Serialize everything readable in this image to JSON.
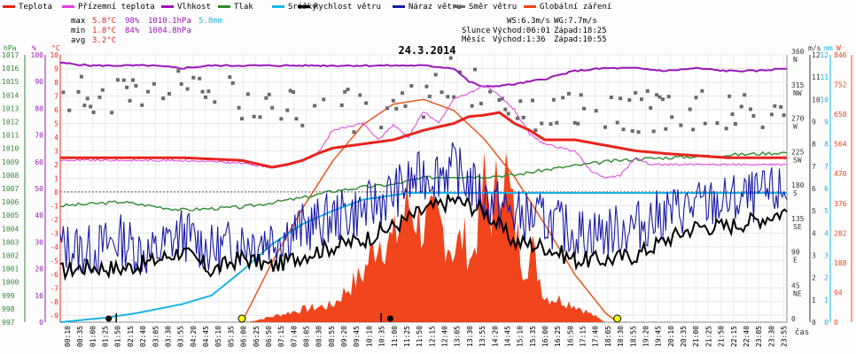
{
  "chart_data": {
    "type": "line",
    "title": "24.3.2014",
    "legend": [
      {
        "label": "Teplota",
        "color": "#e8231b"
      },
      {
        "label": "Přízemní teplota",
        "color": "#e040e0"
      },
      {
        "label": "Vlhkost",
        "color": "#9a16b8"
      },
      {
        "label": "Tlak",
        "color": "#2e8b2e"
      },
      {
        "label": "Srážky",
        "color": "#18b4e6"
      },
      {
        "label": "Rychlost větru",
        "color": "#000000"
      },
      {
        "label": "Náraz větru",
        "color": "#1a1aa6"
      },
      {
        "label": "Směr větru",
        "color": "#6a6a6a"
      },
      {
        "label": "Globální záření",
        "color": "#f0441c"
      }
    ],
    "stats": {
      "max_label": "max",
      "max_temp": "5.8°C",
      "max_hum": "98%",
      "max_press": "1010.1hPa",
      "max_rain": "5.8mm",
      "min_label": "min",
      "min_temp": "1.8°C",
      "min_hum": "84%",
      "min_press": "1004.8hPa",
      "avg_label": "avg",
      "avg_temp": "3.2°C"
    },
    "wind_info": {
      "ws": "WS:6.3m/s",
      "wg": "WG:7.7m/s"
    },
    "sun_info": {
      "label": "Slunce",
      "rise": "Východ:06:01",
      "set": "Západ:18:25"
    },
    "moon_info": {
      "label": "Měsíc",
      "rise": "Východ:1:36",
      "set": "Západ:10:55"
    },
    "axes": {
      "hpa_unit": "hPa",
      "hpa_ticks": [
        "1017",
        "1016",
        "1015",
        "1014",
        "1013",
        "1012",
        "1011",
        "1010",
        "1009",
        "1008",
        "1007",
        "1006",
        "1005",
        "1004",
        "1003",
        "1002",
        "1001",
        "1000",
        "999",
        "998",
        "997"
      ],
      "pct_unit": "%",
      "pct_ticks": [
        "100",
        "90",
        "80",
        "70",
        "60",
        "50",
        "40",
        "30",
        "20",
        "10",
        "0"
      ],
      "temp_unit": "°C",
      "temp_ticks": [
        "10",
        "9",
        "8",
        "7",
        "6",
        "5",
        "4",
        "3",
        "2",
        "1",
        "0",
        "-1",
        "-2",
        "-3",
        "-4",
        "-5",
        "-6",
        "-7",
        "-8",
        "-9"
      ],
      "dir_unit": "°",
      "dir_ticks": [
        {
          "deg": "360",
          "dir": "N"
        },
        {
          "deg": "315",
          "dir": "NW"
        },
        {
          "deg": "270",
          "dir": "W"
        },
        {
          "deg": "225",
          "dir": "SW"
        },
        {
          "deg": "180",
          "dir": "S"
        },
        {
          "deg": "135",
          "dir": "SE"
        },
        {
          "deg": "90",
          "dir": "E"
        },
        {
          "deg": "45",
          "dir": "NE"
        },
        {
          "deg": "0",
          "dir": ""
        }
      ],
      "ms_unit": "m/s",
      "ms_ticks": [
        "12",
        "11",
        "10",
        "9",
        "8",
        "7",
        "6",
        "5",
        "4",
        "3",
        "2",
        "1",
        "0"
      ],
      "mm_unit": "mm",
      "mm_ticks": [
        "12",
        "11",
        "10",
        "9",
        "8",
        "7",
        "6",
        "5",
        "4",
        "3",
        "2",
        "1",
        "0"
      ],
      "w_unit": "W",
      "w_ticks": [
        "846",
        "752",
        "658",
        "564",
        "470",
        "376",
        "282",
        "188",
        "94",
        "0"
      ],
      "time_unit": "čas",
      "time_labels": [
        "00:10",
        "00:35",
        "01:00",
        "01:25",
        "01:50",
        "02:15",
        "02:40",
        "03:05",
        "03:30",
        "03:55",
        "04:20",
        "04:45",
        "05:10",
        "05:35",
        "06:00",
        "06:25",
        "06:50",
        "07:15",
        "07:40",
        "08:05",
        "08:30",
        "08:55",
        "09:20",
        "09:45",
        "10:10",
        "10:35",
        "11:00",
        "11:25",
        "11:50",
        "12:15",
        "12:40",
        "13:05",
        "13:30",
        "13:55",
        "14:20",
        "14:45",
        "15:10",
        "15:35",
        "16:00",
        "16:25",
        "16:50",
        "17:15",
        "17:40",
        "18:05",
        "18:30",
        "18:55",
        "19:20",
        "19:45",
        "20:10",
        "20:35",
        "21:00",
        "21:25",
        "21:50",
        "22:15",
        "22:40",
        "23:05",
        "23:30",
        "23:55"
      ]
    },
    "x_range_hours": [
      0,
      24
    ],
    "temperature": {
      "x": [
        0,
        2,
        4,
        6,
        7,
        7.5,
        8,
        8.5,
        9,
        10,
        11,
        12,
        13,
        13.5,
        14,
        14.5,
        15,
        15.5,
        16,
        17,
        18,
        18.5,
        19,
        20,
        22,
        24
      ],
      "y": [
        2.5,
        2.5,
        2.5,
        2.3,
        1.8,
        2.0,
        2.3,
        2.8,
        3.2,
        3.5,
        3.8,
        4.5,
        5.0,
        5.5,
        5.6,
        5.8,
        5.0,
        4.5,
        3.8,
        3.8,
        3.4,
        3.2,
        3.0,
        2.8,
        2.5,
        2.5
      ]
    },
    "ground_temperature": {
      "x": [
        0,
        2,
        4,
        6,
        7,
        7.5,
        8,
        8.5,
        9,
        10,
        10.5,
        11,
        11.5,
        12,
        12.5,
        13,
        13.5,
        14,
        14.5,
        15,
        15.5,
        16,
        16.5,
        17,
        17.5,
        18,
        18.5,
        19,
        19.5,
        20,
        22,
        24
      ],
      "y": [
        2.3,
        2.3,
        2.3,
        2.1,
        1.8,
        2.0,
        2.3,
        2.8,
        4.5,
        5.0,
        3.8,
        4.9,
        4.0,
        5.9,
        5.0,
        6.8,
        7.2,
        7.8,
        7.0,
        6.0,
        4.2,
        3.5,
        3.2,
        3.0,
        1.6,
        1.0,
        1.2,
        2.5,
        2.0,
        2.0,
        2.0,
        2.0
      ]
    },
    "humidity": {
      "x": [
        0,
        1,
        2,
        3,
        4,
        5,
        6,
        7,
        8,
        9,
        10,
        11,
        12,
        13,
        13.5,
        14,
        15,
        16,
        17,
        18,
        19,
        20,
        21,
        22,
        23,
        24
      ],
      "y": [
        97,
        96,
        96,
        96,
        95,
        96,
        96,
        96,
        96,
        96,
        96,
        96,
        96,
        95,
        90,
        88,
        89,
        91,
        94,
        95,
        95,
        94,
        95,
        94,
        94,
        95
      ]
    },
    "pressure": {
      "x": [
        0,
        2,
        4,
        6,
        8,
        9,
        10,
        11,
        12,
        13,
        14,
        15,
        16,
        17,
        18,
        19,
        20,
        21,
        22,
        23,
        24
      ],
      "y": [
        1005.7,
        1006.0,
        1005.4,
        1005.6,
        1006.3,
        1006.8,
        1007.1,
        1007.3,
        1007.8,
        1007.9,
        1007.9,
        1008.0,
        1008.4,
        1008.7,
        1009.0,
        1009.2,
        1009.3,
        1009.4,
        1009.5,
        1009.6,
        1009.7
      ]
    },
    "rain_cumulative": {
      "x": [
        0,
        1.5,
        2.5,
        4,
        5,
        6,
        7,
        8,
        9,
        10,
        10.5,
        11,
        11.5,
        16,
        16.3,
        24
      ],
      "y": [
        0,
        0.2,
        0.4,
        0.8,
        1.2,
        2.3,
        3.5,
        4.4,
        5.0,
        5.5,
        5.6,
        5.7,
        5.8,
        5.8,
        5.8,
        5.8
      ]
    },
    "wind_speed_avg": {
      "x": [
        0,
        1,
        2,
        3,
        4,
        5,
        6,
        7,
        8,
        9,
        10,
        11,
        12,
        13,
        14,
        15,
        16,
        17,
        18,
        19,
        20,
        21,
        22,
        23,
        24
      ],
      "y": [
        2.3,
        2.5,
        2.4,
        2.7,
        3.2,
        2.3,
        2.9,
        2.5,
        3.0,
        3.4,
        3.7,
        4.3,
        5.0,
        5.5,
        5.0,
        3.6,
        3.4,
        2.8,
        2.8,
        3.0,
        3.7,
        4.3,
        4.3,
        4.6,
        5.0
      ]
    },
    "wind_gust": {
      "x": [
        0,
        1,
        2,
        3,
        4,
        5,
        6,
        7,
        8,
        9,
        10,
        11,
        12,
        13,
        14,
        15,
        16,
        17,
        18,
        19,
        20,
        21,
        22,
        23,
        24
      ],
      "y": [
        3.4,
        3.2,
        3.7,
        3.0,
        4.0,
        3.2,
        3.6,
        3.8,
        4.2,
        4.7,
        5.0,
        5.8,
        6.6,
        6.9,
        5.6,
        4.8,
        4.6,
        4.0,
        4.0,
        4.3,
        4.9,
        5.2,
        5.4,
        5.6,
        5.9
      ]
    },
    "wind_direction_deg": {
      "x": [
        0,
        2,
        4,
        6,
        8,
        9,
        10,
        11,
        12,
        13,
        14,
        15,
        16,
        17,
        18,
        19,
        20,
        22,
        24
      ],
      "y": [
        300,
        310,
        310,
        300,
        290,
        290,
        280,
        290,
        290,
        330,
        315,
        300,
        280,
        280,
        280,
        285,
        285,
        285,
        290
      ]
    },
    "solar_radiation": {
      "x": [
        0,
        6.2,
        7,
        8,
        9,
        9.5,
        10,
        10.5,
        11,
        11.5,
        12,
        12.5,
        13,
        13.3,
        13.6,
        14,
        14.3,
        14.6,
        15,
        15.3,
        15.6,
        16,
        16.5,
        17,
        17.5,
        18,
        24
      ],
      "y": [
        0,
        0,
        20,
        45,
        60,
        120,
        170,
        300,
        280,
        420,
        330,
        350,
        250,
        300,
        220,
        480,
        380,
        600,
        350,
        200,
        250,
        90,
        80,
        60,
        30,
        0,
        0
      ]
    },
    "clear_sky_radiation": {
      "x": [
        6.0,
        7,
        8,
        9,
        10,
        11,
        12,
        13,
        14,
        15,
        16,
        17,
        18,
        18.4
      ],
      "y": [
        0,
        190,
        360,
        510,
        625,
        690,
        705,
        670,
        580,
        460,
        310,
        150,
        30,
        0
      ]
    }
  }
}
